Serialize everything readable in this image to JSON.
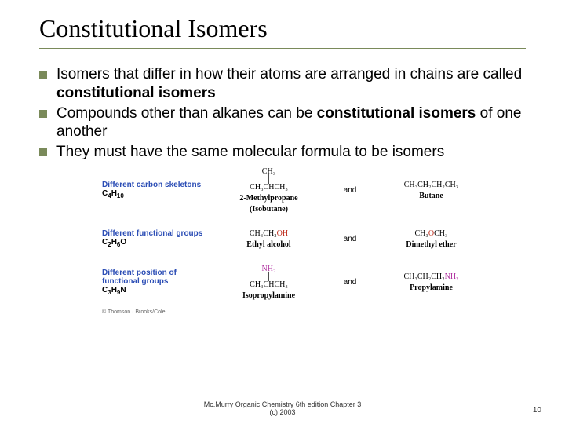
{
  "title": "Constitutional Isomers",
  "bullets": [
    {
      "pre": "Isomers that differ in how their atoms are arranged in chains are called ",
      "bold": "constitutional isomers",
      "post": ""
    },
    {
      "pre": "Compounds other than alkanes can be ",
      "bold": "constitutional isomers",
      "post": " of one another"
    },
    {
      "pre": "They must have the same molecular formula to be isomers",
      "bold": "",
      "post": ""
    }
  ],
  "diagram": {
    "rows": [
      {
        "label_top": "Different carbon skeletons",
        "label_formula_base": "C",
        "label_formula_parts": [
          "4",
          "H",
          "10"
        ],
        "left": {
          "lines_top": "CH₃",
          "lines_mid": "CH₃CHCH₃",
          "name": "2-Methylpropane",
          "name2": "(Isobutane)"
        },
        "right": {
          "lines_mid": "CH₃CH₂CH₂CH₃",
          "name": "Butane"
        }
      },
      {
        "label_top": "Different functional groups",
        "label_formula_base": "C",
        "label_formula_parts": [
          "2",
          "H",
          "6",
          "O"
        ],
        "left": {
          "lines_mid_pre": "CH₃CH₂",
          "lines_mid_oh": "OH",
          "name": "Ethyl alcohol"
        },
        "right": {
          "lines_mid_pre": "CH₃",
          "lines_mid_oh": "O",
          "lines_mid_post": "CH₃",
          "name": "Dimethyl ether"
        }
      },
      {
        "label_top": "Different position of functional groups",
        "label_formula_base": "C",
        "label_formula_parts": [
          "3",
          "H",
          "9",
          "N"
        ],
        "left": {
          "lines_top_nh": "NH₂",
          "lines_mid": "CH₃CHCH₃",
          "name": "Isopropylamine"
        },
        "right": {
          "lines_mid_pre": "CH₃CH₂CH₂",
          "lines_mid_nh": "NH₂",
          "name": "Propylamine"
        }
      }
    ],
    "and_label": "and",
    "copyright": "© Thomson · Brooks/Cole"
  },
  "footer": "Mc.Murry Organic Chemistry 6th edition Chapter 3",
  "footer2": "(c) 2003",
  "pagenum": "10",
  "colors": {
    "accent": "#7a8a5a",
    "label_blue": "#2b4db5",
    "oh": "#c03020",
    "nh": "#b030a0"
  }
}
